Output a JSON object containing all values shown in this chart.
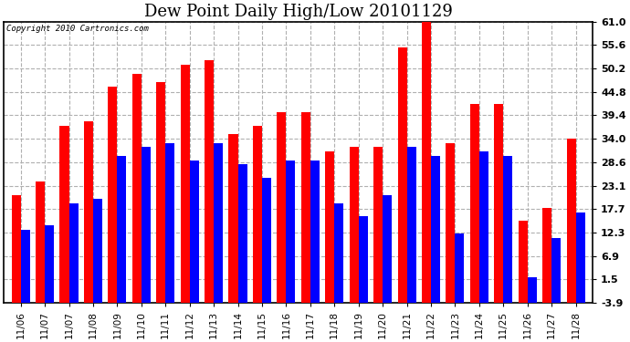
{
  "title": "Dew Point Daily High/Low 20101129",
  "copyright": "Copyright 2010 Cartronics.com",
  "dates": [
    "11/06",
    "11/07",
    "11/07",
    "11/08",
    "11/09",
    "11/10",
    "11/11",
    "11/12",
    "11/13",
    "11/14",
    "11/15",
    "11/16",
    "11/17",
    "11/18",
    "11/19",
    "11/20",
    "11/21",
    "11/22",
    "11/23",
    "11/24",
    "11/25",
    "11/26",
    "11/27",
    "11/28"
  ],
  "highs": [
    21.0,
    24.0,
    37.0,
    38.0,
    46.0,
    49.0,
    47.0,
    51.0,
    52.0,
    35.0,
    37.0,
    40.0,
    40.0,
    31.0,
    32.0,
    32.0,
    55.0,
    61.0,
    33.0,
    42.0,
    42.0,
    15.0,
    18.0,
    34.0
  ],
  "lows": [
    13.0,
    14.0,
    19.0,
    20.0,
    30.0,
    32.0,
    33.0,
    29.0,
    33.0,
    28.0,
    25.0,
    29.0,
    29.0,
    19.0,
    16.0,
    21.0,
    32.0,
    30.0,
    12.0,
    31.0,
    30.0,
    2.0,
    11.0,
    17.0
  ],
  "high_color": "#ff0000",
  "low_color": "#0000ff",
  "bg_color": "#ffffff",
  "grid_color": "#b0b0b0",
  "yticks": [
    -3.9,
    1.5,
    6.9,
    12.3,
    17.7,
    23.1,
    28.6,
    34.0,
    39.4,
    44.8,
    50.2,
    55.6,
    61.0
  ],
  "ymin": -3.9,
  "ymax": 61.0,
  "bar_bottom": -3.9,
  "bar_width": 0.38,
  "title_fontsize": 13,
  "tick_fontsize": 8,
  "xlabel_fontsize": 7.5
}
